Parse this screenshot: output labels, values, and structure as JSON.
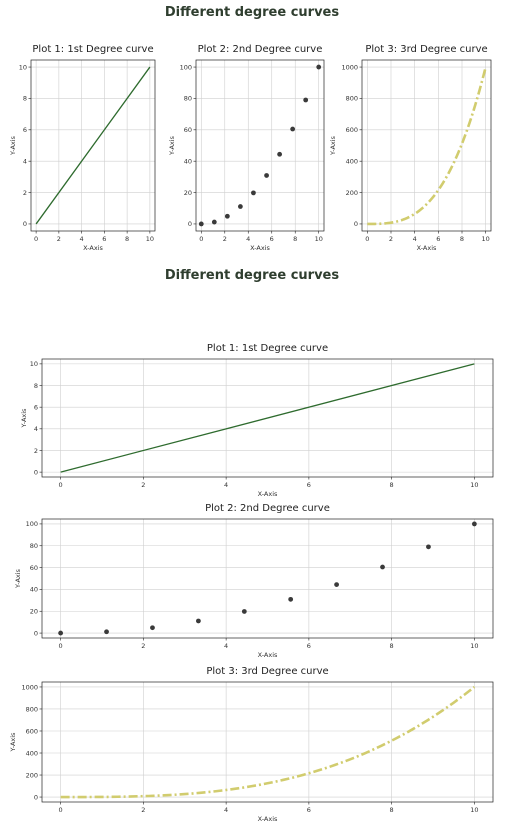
{
  "figures": [
    {
      "title": "Different degree curves"
    },
    {
      "title": "Different degree curves"
    }
  ],
  "colors": {
    "linear": "#2e6b2e",
    "quadratic": "#3a3a3a",
    "cubic": "#d1cc6e"
  },
  "chart_data": [
    {
      "type": "line",
      "figure": 1,
      "title": "Plot 1: 1st Degree curve",
      "xlabel": "X-Axis",
      "ylabel": "Y-Axis",
      "xlim": [
        0,
        10
      ],
      "ylim": [
        0,
        10
      ],
      "xticks": [
        0,
        2,
        4,
        6,
        8,
        10
      ],
      "yticks": [
        0,
        2,
        4,
        6,
        8,
        10
      ],
      "grid": true,
      "series": [
        {
          "x": [
            0,
            10
          ],
          "y": [
            0,
            10
          ],
          "style": "solid",
          "color": "#2e6b2e"
        }
      ]
    },
    {
      "type": "scatter",
      "figure": 1,
      "title": "Plot 2: 2nd Degree curve",
      "xlabel": "X-Axis",
      "ylabel": "Y-Axis",
      "xlim": [
        0,
        10
      ],
      "ylim": [
        0,
        100
      ],
      "xticks": [
        0,
        2,
        4,
        6,
        8,
        10
      ],
      "yticks": [
        0,
        20,
        40,
        60,
        80,
        100
      ],
      "grid": true,
      "series": [
        {
          "x": [
            0,
            1.11,
            2.22,
            3.33,
            4.44,
            5.56,
            6.67,
            7.78,
            8.89,
            10
          ],
          "y": [
            0,
            1.2,
            4.9,
            11.1,
            19.8,
            30.9,
            44.4,
            60.5,
            79.0,
            100
          ],
          "color": "#3a3a3a"
        }
      ]
    },
    {
      "type": "line",
      "figure": 1,
      "title": "Plot 3: 3rd Degree curve",
      "xlabel": "X-Axis",
      "ylabel": "Y-Axis",
      "xlim": [
        0,
        10
      ],
      "ylim": [
        0,
        1000
      ],
      "xticks": [
        0,
        2,
        4,
        6,
        8,
        10
      ],
      "yticks": [
        0,
        200,
        400,
        600,
        800,
        1000
      ],
      "grid": true,
      "series": [
        {
          "x": [
            0,
            1,
            2,
            3,
            4,
            5,
            6,
            7,
            8,
            9,
            10
          ],
          "y": [
            0,
            1,
            8,
            27,
            64,
            125,
            216,
            343,
            512,
            729,
            1000
          ],
          "style": "dashdot",
          "color": "#d1cc6e"
        }
      ]
    },
    {
      "type": "line",
      "figure": 2,
      "title": "Plot 1: 1st Degree curve",
      "xlabel": "X-Axis",
      "ylabel": "Y-Axis",
      "xlim": [
        0,
        10
      ],
      "ylim": [
        0,
        10
      ],
      "xticks": [
        0,
        2,
        4,
        6,
        8,
        10
      ],
      "yticks": [
        0,
        2,
        4,
        6,
        8,
        10
      ],
      "grid": true,
      "series": [
        {
          "x": [
            0,
            10
          ],
          "y": [
            0,
            10
          ],
          "style": "solid",
          "color": "#2e6b2e"
        }
      ]
    },
    {
      "type": "scatter",
      "figure": 2,
      "title": "Plot 2: 2nd Degree curve",
      "xlabel": "X-Axis",
      "ylabel": "Y-Axis",
      "xlim": [
        0,
        10
      ],
      "ylim": [
        0,
        100
      ],
      "xticks": [
        0,
        2,
        4,
        6,
        8,
        10
      ],
      "yticks": [
        0,
        20,
        40,
        60,
        80,
        100
      ],
      "grid": true,
      "series": [
        {
          "x": [
            0,
            1.11,
            2.22,
            3.33,
            4.44,
            5.56,
            6.67,
            7.78,
            8.89,
            10
          ],
          "y": [
            0,
            1.2,
            4.9,
            11.1,
            19.8,
            30.9,
            44.4,
            60.5,
            79.0,
            100
          ],
          "color": "#3a3a3a"
        }
      ]
    },
    {
      "type": "line",
      "figure": 2,
      "title": "Plot 3: 3rd Degree curve",
      "xlabel": "X-Axis",
      "ylabel": "Y-Axis",
      "xlim": [
        0,
        10
      ],
      "ylim": [
        0,
        1000
      ],
      "xticks": [
        0,
        2,
        4,
        6,
        8,
        10
      ],
      "yticks": [
        0,
        200,
        400,
        600,
        800,
        1000
      ],
      "grid": true,
      "series": [
        {
          "x": [
            0,
            1,
            2,
            3,
            4,
            5,
            6,
            7,
            8,
            9,
            10
          ],
          "y": [
            0,
            1,
            8,
            27,
            64,
            125,
            216,
            343,
            512,
            729,
            1000
          ],
          "style": "dashdot",
          "color": "#d1cc6e"
        }
      ]
    }
  ]
}
